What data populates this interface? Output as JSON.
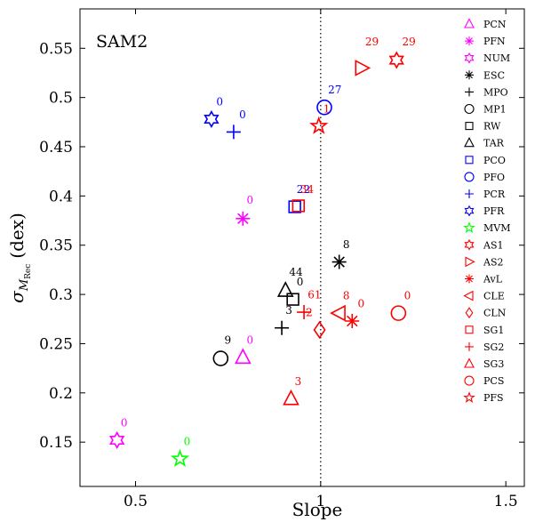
{
  "chart_data": {
    "type": "scatter",
    "title": "SAM2",
    "xlabel": "Slope",
    "ylabel": {
      "sigma": "σ",
      "sub_main": "M",
      "sub_sub": "Rec",
      "unit": "(dex)"
    },
    "xlim": [
      0.35,
      1.55
    ],
    "ylim": [
      0.105,
      0.59
    ],
    "xticks": [
      0.5,
      1,
      1.5
    ],
    "xtick_labels": [
      "0.5",
      "1",
      "1.5"
    ],
    "yticks": [
      0.15,
      0.2,
      0.25,
      0.3,
      0.35,
      0.4,
      0.45,
      0.5,
      0.55
    ],
    "ytick_labels": [
      "0.15",
      "0.2",
      "0.25",
      "0.3",
      "0.35",
      "0.4",
      "0.45",
      "0.5",
      "0.55"
    ],
    "reference_line": {
      "x": 1,
      "style": "dotted"
    },
    "grid": false,
    "legend_position": "right",
    "legend": [
      {
        "name": "PCN",
        "marker": "triangle-up",
        "color": "#ff00ff"
      },
      {
        "name": "PFN",
        "marker": "asterisk",
        "color": "#ff00ff"
      },
      {
        "name": "NUM",
        "marker": "hexagram",
        "color": "#ff00ff"
      },
      {
        "name": "ESC",
        "marker": "asterisk",
        "color": "#000000"
      },
      {
        "name": "MPO",
        "marker": "plus",
        "color": "#000000"
      },
      {
        "name": "MP1",
        "marker": "circle",
        "color": "#000000"
      },
      {
        "name": "RW",
        "marker": "square",
        "color": "#000000"
      },
      {
        "name": "TAR",
        "marker": "triangle-up",
        "color": "#000000"
      },
      {
        "name": "PCO",
        "marker": "square",
        "color": "#0000ff"
      },
      {
        "name": "PFO",
        "marker": "circle",
        "color": "#0000ff"
      },
      {
        "name": "PCR",
        "marker": "plus",
        "color": "#0000ff"
      },
      {
        "name": "PFR",
        "marker": "hexagram",
        "color": "#0000ff"
      },
      {
        "name": "MVM",
        "marker": "pentagram",
        "color": "#00ff00"
      },
      {
        "name": "AS1",
        "marker": "hexagram",
        "color": "#ff0000"
      },
      {
        "name": "AS2",
        "marker": "triangle-right",
        "color": "#ff0000"
      },
      {
        "name": "AvL",
        "marker": "asterisk",
        "color": "#ff0000"
      },
      {
        "name": "CLE",
        "marker": "triangle-left",
        "color": "#ff0000"
      },
      {
        "name": "CLN",
        "marker": "diamond",
        "color": "#ff0000"
      },
      {
        "name": "SG1",
        "marker": "square",
        "color": "#ff0000"
      },
      {
        "name": "SG2",
        "marker": "plus",
        "color": "#ff0000"
      },
      {
        "name": "SG3",
        "marker": "triangle-up",
        "color": "#ff0000"
      },
      {
        "name": "PCS",
        "marker": "circle",
        "color": "#ff0000"
      },
      {
        "name": "PFS",
        "marker": "pentagram",
        "color": "#ff0000"
      }
    ],
    "points": [
      {
        "name": "PCN",
        "marker": "triangle-up",
        "color": "#ff00ff",
        "x": 0.79,
        "y": 0.236,
        "label": "0",
        "lx": 0.8,
        "ly": 0.25
      },
      {
        "name": "PFN",
        "marker": "asterisk",
        "color": "#ff00ff",
        "x": 0.79,
        "y": 0.377,
        "label": "0",
        "lx": 0.8,
        "ly": 0.392
      },
      {
        "name": "NUM",
        "marker": "hexagram",
        "color": "#ff00ff",
        "x": 0.45,
        "y": 0.152,
        "label": "0",
        "lx": 0.46,
        "ly": 0.166
      },
      {
        "name": "ESC",
        "marker": "asterisk",
        "color": "#000000",
        "x": 1.05,
        "y": 0.333,
        "label": "8",
        "lx": 1.06,
        "ly": 0.347
      },
      {
        "name": "MPO",
        "marker": "plus",
        "color": "#000000",
        "x": 0.895,
        "y": 0.266,
        "label": "3",
        "lx": 0.905,
        "ly": 0.28
      },
      {
        "name": "MP1",
        "marker": "circle",
        "color": "#000000",
        "x": 0.73,
        "y": 0.235,
        "label": "9",
        "lx": 0.74,
        "ly": 0.25
      },
      {
        "name": "RW",
        "marker": "square",
        "color": "#000000",
        "x": 0.925,
        "y": 0.295,
        "label": "0",
        "lx": 0.935,
        "ly": 0.309
      },
      {
        "name": "TAR",
        "marker": "triangle-up",
        "color": "#000000",
        "x": 0.905,
        "y": 0.304,
        "label": "44",
        "lx": 0.915,
        "ly": 0.319
      },
      {
        "name": "PCO",
        "marker": "square",
        "color": "#0000ff",
        "x": 0.93,
        "y": 0.389,
        "label": "22",
        "lx": 0.935,
        "ly": 0.403
      },
      {
        "name": "PFO",
        "marker": "circle",
        "color": "#0000ff",
        "x": 1.01,
        "y": 0.49,
        "label": "27",
        "lx": 1.02,
        "ly": 0.504
      },
      {
        "name": "PCR",
        "marker": "plus",
        "color": "#0000ff",
        "x": 0.765,
        "y": 0.465,
        "label": "0",
        "lx": 0.78,
        "ly": 0.479
      },
      {
        "name": "PFR",
        "marker": "hexagram",
        "color": "#0000ff",
        "x": 0.705,
        "y": 0.478,
        "label": "0",
        "lx": 0.718,
        "ly": 0.492
      },
      {
        "name": "MVM",
        "marker": "pentagram",
        "color": "#00ff00",
        "x": 0.62,
        "y": 0.133,
        "label": "0",
        "lx": 0.63,
        "ly": 0.147
      },
      {
        "name": "AS1",
        "marker": "hexagram",
        "color": "#ff0000",
        "x": 1.205,
        "y": 0.538,
        "label": "29",
        "lx": 1.22,
        "ly": 0.553
      },
      {
        "name": "AS2",
        "marker": "triangle-right",
        "color": "#ff0000",
        "x": 1.11,
        "y": 0.53,
        "label": "29",
        "lx": 1.12,
        "ly": 0.553
      },
      {
        "name": "AvL",
        "marker": "asterisk",
        "color": "#ff0000",
        "x": 1.085,
        "y": 0.273,
        "label": "0",
        "lx": 1.1,
        "ly": 0.287
      },
      {
        "name": "CLE",
        "marker": "triangle-left",
        "color": "#ff0000",
        "x": 1.05,
        "y": 0.281,
        "label": "8",
        "lx": 1.06,
        "ly": 0.295
      },
      {
        "name": "CLN",
        "marker": "diamond",
        "color": "#ff0000",
        "x": 0.997,
        "y": 0.264,
        "label": "2",
        "lx": 0.96,
        "ly": 0.278
      },
      {
        "name": "SG1",
        "marker": "square",
        "color": "#ff0000",
        "x": 0.94,
        "y": 0.39,
        "label": "34",
        "lx": 0.945,
        "ly": 0.403
      },
      {
        "name": "SG2",
        "marker": "plus",
        "color": "#ff0000",
        "x": 0.955,
        "y": 0.282,
        "label": "61",
        "lx": 0.965,
        "ly": 0.296
      },
      {
        "name": "SG3",
        "marker": "triangle-up",
        "color": "#ff0000",
        "x": 0.92,
        "y": 0.194,
        "label": "3",
        "lx": 0.93,
        "ly": 0.208
      },
      {
        "name": "PCS",
        "marker": "circle",
        "color": "#ff0000",
        "x": 1.21,
        "y": 0.281,
        "label": "0",
        "lx": 1.225,
        "ly": 0.295
      },
      {
        "name": "PFS",
        "marker": "pentagram",
        "color": "#ff0000",
        "x": 0.995,
        "y": 0.471,
        "label": "1",
        "lx": 1.007,
        "ly": 0.485
      }
    ]
  }
}
